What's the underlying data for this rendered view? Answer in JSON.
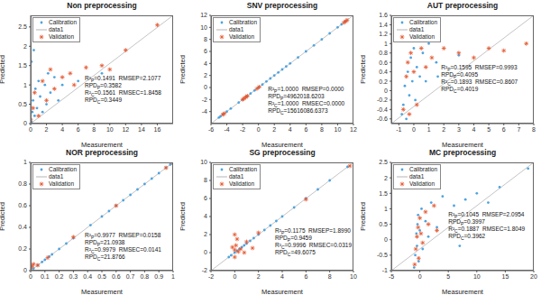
{
  "chart_data": [
    {
      "type": "scatter",
      "title": "Non preprocessing",
      "x_label": "Measurement",
      "y_label": "Predicted",
      "grid": false,
      "legend": "upper left",
      "xlim": [
        0,
        18
      ],
      "xticks": [
        0,
        2,
        4,
        6,
        8,
        10,
        12,
        14,
        16
      ],
      "ylim": [
        0,
        2.8
      ],
      "yticks": [
        0,
        0.5,
        1,
        1.5,
        2,
        2.5
      ],
      "series": [
        {
          "name": "Calibration",
          "color": "#4da3e0",
          "marker": "dot",
          "x": [
            0.1,
            0.2,
            0.3,
            0.5,
            0.6,
            0.8,
            1,
            1.2,
            1.5,
            1.8,
            2,
            2.2,
            2.5,
            3,
            3.5,
            4,
            0.1,
            0.4,
            6,
            9
          ],
          "values": [
            0.05,
            0.3,
            0.6,
            0.2,
            0.9,
            0.4,
            1.1,
            0.7,
            0.3,
            1.0,
            0.5,
            1.3,
            0.8,
            1.2,
            0.6,
            1.0,
            1.6,
            1.9,
            1.1,
            1.3
          ]
        },
        {
          "name": "data1",
          "type": "line",
          "color": "#b5b5b5",
          "line_style": "solid",
          "x": [
            0,
            18
          ],
          "values": [
            0,
            2.8
          ]
        },
        {
          "name": "Validation",
          "color": "#e5552d",
          "marker": "star",
          "x": [
            0,
            0.3,
            0.5,
            1,
            1.5,
            2,
            2.5,
            3,
            4,
            5,
            5.5,
            7,
            9,
            12,
            16,
            10
          ],
          "values": [
            0.1,
            0.4,
            0.8,
            0.2,
            1.1,
            0.6,
            1.4,
            0.9,
            1.2,
            1.3,
            1.0,
            1.45,
            1.5,
            1.9,
            2.55,
            1.4
          ]
        }
      ],
      "annotation": [
        "R²P=0.1491  RMSEP=2.1077",
        "RPDP=0.3582",
        "R²C=0.1561  RMSEC=1.8458",
        "RPDC=0.3449"
      ]
    },
    {
      "type": "scatter",
      "title": "SNV preprocessing",
      "x_label": "Measurement",
      "y_label": "Predicted",
      "grid": false,
      "legend": "upper left",
      "xlim": [
        -6,
        12
      ],
      "xticks": [
        -6,
        -4,
        -2,
        0,
        2,
        4,
        6,
        8,
        10,
        12
      ],
      "ylim": [
        -6,
        12
      ],
      "yticks": [
        -4,
        -2,
        0,
        2,
        4,
        6,
        8,
        10,
        12
      ],
      "series": [
        {
          "name": "Calibration",
          "color": "#4da3e0",
          "marker": "dot",
          "x": [
            -5,
            -4.8,
            -4.5,
            -4,
            -3.5,
            -2.5,
            -2,
            -1.5,
            -1,
            -0.5,
            0,
            0.5,
            1,
            1.5,
            2,
            2.5,
            3,
            3.5,
            4,
            5,
            6,
            7,
            8,
            9,
            10,
            10.5,
            11
          ],
          "values": [
            -5,
            -4.8,
            -4.5,
            -4,
            -3.5,
            -2.5,
            -2,
            -1.5,
            -1,
            -0.5,
            0,
            0.5,
            1,
            1.5,
            2,
            2.5,
            3,
            3.5,
            4,
            5,
            6,
            7,
            8,
            9,
            10,
            10.5,
            11
          ]
        },
        {
          "name": "data1",
          "type": "line",
          "color": "#b5b5b5",
          "line_style": "solid",
          "x": [
            -6,
            12
          ],
          "values": [
            -6,
            12
          ]
        },
        {
          "name": "Validation",
          "color": "#e5552d",
          "marker": "star",
          "x": [
            -4.5,
            -4.3,
            -2,
            -1.8,
            -1.6,
            -1.4,
            -0.2,
            0.1,
            10.8,
            11,
            11.2
          ],
          "values": [
            -4.5,
            -4.3,
            -2,
            -1.8,
            -1.6,
            -1.4,
            -0.2,
            0.1,
            10.8,
            11,
            11.2
          ]
        }
      ],
      "annotation": [
        "R²P=1.0000  RMSEP=0.0000",
        "RPDP=4962018.6203",
        "R²C=1.0000  RMSEC=0.0000",
        "RPDC=15616086.6373"
      ]
    },
    {
      "type": "scatter",
      "title": "AUT preprocessing",
      "x_label": "Measurement",
      "y_label": "Predicted",
      "grid": false,
      "legend": "upper left",
      "xlim": [
        -1.5,
        8
      ],
      "xticks": [
        -1,
        0,
        1,
        2,
        3,
        4,
        5,
        6,
        7,
        8
      ],
      "ylim": [
        -0.7,
        1.6
      ],
      "yticks": [
        -0.6,
        -0.4,
        -0.2,
        0,
        0.2,
        0.4,
        0.6,
        0.8,
        1,
        1.2,
        1.4,
        1.6
      ],
      "series": [
        {
          "name": "Calibration",
          "color": "#4da3e0",
          "marker": "dot",
          "x": [
            -0.8,
            -0.7,
            -0.6,
            -0.5,
            -0.4,
            -0.3,
            -0.2,
            -0.1,
            0,
            0.1,
            0.2,
            0.4,
            0.6,
            0.8,
            1,
            1.5,
            1.6,
            3
          ],
          "values": [
            -0.5,
            -0.3,
            0.1,
            -0.6,
            0.4,
            -0.1,
            0.7,
            0.2,
            0.9,
            -0.2,
            0.5,
            0.3,
            0.8,
            0.2,
            1.0,
            0.6,
            0.3,
            0.75
          ]
        },
        {
          "name": "data1",
          "type": "line",
          "color": "#b5b5b5",
          "line_style": "solid",
          "x": [
            -1.5,
            8
          ],
          "values": [
            -0.7,
            1.6
          ]
        },
        {
          "name": "Validation",
          "color": "#e5552d",
          "marker": "star",
          "x": [
            -0.7,
            -0.5,
            -0.4,
            -0.3,
            -0.2,
            0,
            0.2,
            0.5,
            0.8,
            1.2,
            2,
            3,
            4,
            5,
            6,
            7.5
          ],
          "values": [
            -0.4,
            0.3,
            0.6,
            -0.5,
            0.8,
            0.4,
            -0.3,
            0.9,
            0.5,
            0.7,
            0.9,
            0.8,
            0.7,
            0.9,
            0.85,
            1.0
          ]
        }
      ],
      "annotation": [
        "R²P=0.1595  RMSEP=0.9993",
        "RPDP=0.4095",
        "R²C=0.1893  RMSEC=0.8607",
        "RPDC=0.4019"
      ]
    },
    {
      "type": "scatter",
      "title": "NOR preprocessing",
      "x_label": "Measurement",
      "y_label": "Predicted",
      "grid": false,
      "legend": "upper left",
      "xlim": [
        0,
        1
      ],
      "xticks": [
        0,
        0.1,
        0.2,
        0.3,
        0.4,
        0.5,
        0.6,
        0.7,
        0.8,
        0.9,
        1
      ],
      "ylim": [
        0,
        1
      ],
      "yticks": [
        0,
        0.2,
        0.4,
        0.6,
        0.8,
        1
      ],
      "series": [
        {
          "name": "Calibration",
          "color": "#4da3e0",
          "marker": "dot",
          "x": [
            0.02,
            0.05,
            0.08,
            0.1,
            0.13,
            0.15,
            0.2,
            0.25,
            0.3,
            0.42,
            0.5,
            0.55,
            0.6,
            0.65,
            0.7,
            0.75,
            0.8,
            0.85,
            0.9,
            0.95,
            0.98
          ],
          "values": [
            0.02,
            0.05,
            0.08,
            0.1,
            0.13,
            0.15,
            0.2,
            0.25,
            0.3,
            0.42,
            0.5,
            0.55,
            0.6,
            0.65,
            0.7,
            0.75,
            0.8,
            0.85,
            0.9,
            0.95,
            0.98
          ]
        },
        {
          "name": "data1",
          "type": "line",
          "color": "#b5b5b5",
          "line_style": "solid",
          "x": [
            0,
            1
          ],
          "values": [
            0,
            1
          ]
        },
        {
          "name": "Validation",
          "color": "#e5552d",
          "marker": "star",
          "x": [
            0,
            0.01,
            0.02,
            0.05,
            0.12,
            0.3,
            0.6,
            0.95,
            1
          ],
          "values": [
            0.02,
            0.04,
            0.06,
            0.05,
            0.12,
            0.31,
            0.6,
            0.95,
            0.99
          ]
        }
      ],
      "annotation": [
        "R²P=0.9977  RMSEP=0.0158",
        "RPDP=21.0938",
        "R²C=0.9979  RMSEC=0.0141",
        "RPDC=21.8766"
      ]
    },
    {
      "type": "scatter",
      "title": "SG preprocessing",
      "x_label": "Measurement",
      "y_label": "Predicted",
      "grid": false,
      "legend": "upper left",
      "xlim": [
        -2,
        10
      ],
      "xticks": [
        -2,
        0,
        2,
        4,
        6,
        8,
        10
      ],
      "ylim": [
        -2,
        10
      ],
      "yticks": [
        -2,
        0,
        2,
        4,
        6,
        8,
        10
      ],
      "series": [
        {
          "name": "Calibration",
          "color": "#4da3e0",
          "marker": "dot",
          "x": [
            -0.5,
            -0.3,
            0,
            0.2,
            0.4,
            0.6,
            0.8,
            1,
            1.3,
            1.6,
            2,
            2.5,
            3,
            3.5,
            4,
            5,
            6,
            7,
            8,
            9.5
          ],
          "values": [
            -0.5,
            -0.3,
            0,
            0.2,
            0.4,
            0.6,
            0.8,
            1,
            1.3,
            1.6,
            2,
            2.5,
            3,
            3.5,
            4,
            5,
            6,
            7,
            8,
            9.5
          ]
        },
        {
          "name": "data1",
          "type": "line",
          "color": "#b5b5b5",
          "line_style": "solid",
          "x": [
            -2,
            10
          ],
          "values": [
            -2,
            10
          ]
        },
        {
          "name": "Validation",
          "color": "#e5552d",
          "marker": "star",
          "x": [
            0,
            0,
            0.1,
            0.2,
            0,
            0.3,
            0.5,
            -0.2,
            1,
            1.5,
            2,
            0.8,
            6,
            9.7
          ],
          "values": [
            -0.5,
            0.3,
            0.8,
            1.5,
            2.0,
            0.1,
            0.4,
            0.6,
            1.2,
            0.5,
            2.2,
            0.0,
            5.9,
            9.6
          ]
        }
      ],
      "annotation": [
        "R²P=0.1175  RMSEP=1.8990",
        "RPDP=0.9459",
        "R²C=0.9996  RMSEC=0.0319",
        "RPDC=49.6075"
      ]
    },
    {
      "type": "scatter",
      "title": "MC preprocessing",
      "x_label": "Measurement",
      "y_label": "Predicted",
      "grid": false,
      "legend": "upper left",
      "xlim": [
        -5,
        20
      ],
      "xticks": [
        -5,
        0,
        5,
        10,
        15,
        20
      ],
      "ylim": [
        -1,
        2.5
      ],
      "yticks": [
        -1,
        -0.5,
        0,
        0.5,
        1,
        1.5,
        2,
        2.5
      ],
      "series": [
        {
          "name": "Calibration",
          "color": "#4da3e0",
          "marker": "dot",
          "x": [
            -1,
            -0.8,
            -0.6,
            -0.5,
            -0.4,
            -0.3,
            -0.2,
            0,
            0.3,
            0.5,
            1,
            1.5,
            2,
            3,
            4,
            6,
            8,
            10,
            12,
            14,
            19,
            7
          ],
          "values": [
            -0.9,
            -0.5,
            0.2,
            -0.2,
            0.5,
            0.8,
            -0.7,
            0.3,
            1.0,
            -0.3,
            0.6,
            0.1,
            1.2,
            0.4,
            1.4,
            1.1,
            1.3,
            1.5,
            1.2,
            1.7,
            2.3,
            -0.2
          ]
        },
        {
          "name": "data1",
          "type": "line",
          "color": "#b5b5b5",
          "line_style": "solid",
          "x": [
            -5,
            20
          ],
          "values": [
            -1,
            2.5
          ]
        },
        {
          "name": "Validation",
          "color": "#e5552d",
          "marker": "star",
          "x": [
            -0.9,
            -0.7,
            -0.5,
            -0.3,
            -0.2,
            0,
            0.2,
            0.5,
            1,
            1.5,
            2.5,
            3
          ],
          "values": [
            -0.8,
            -0.3,
            0.1,
            0.4,
            -0.6,
            0.7,
            0.2,
            -0.1,
            0.9,
            0.5,
            1.1,
            0.3
          ]
        }
      ],
      "annotation": [
        "R²P=0.1045  RMSEP=2.0954",
        "RPDP=0.3997",
        "R²C=0.1887  RMSEC=1.8049",
        "RPDC=0.3962"
      ]
    }
  ]
}
